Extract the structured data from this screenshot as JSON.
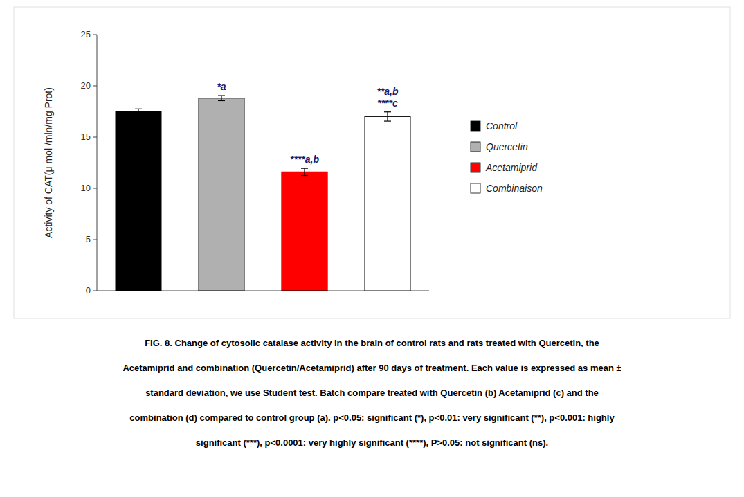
{
  "chart_data": {
    "type": "bar",
    "categories": [
      "Control",
      "Quercetin",
      "Acetamiprid",
      "Combinaison"
    ],
    "values": [
      17.5,
      18.8,
      11.6,
      17.0
    ],
    "errors": [
      0.25,
      0.25,
      0.35,
      0.45
    ],
    "colors": [
      "black",
      "#b0b0b0",
      "red",
      "white"
    ],
    "ylabel": "Activity of CAT(μ mol /mln/mg Prot)",
    "ylim": [
      0,
      25
    ],
    "yticks": [
      0,
      5,
      10,
      15,
      20,
      25
    ],
    "grid": false,
    "legend": "right",
    "tick_labels": "y",
    "annotations": [
      {
        "category": "Quercetin",
        "lines": [
          "*a"
        ],
        "color": "#1a1a6e"
      },
      {
        "category": "Acetamiprid",
        "lines": [
          "****a,b"
        ],
        "color": "#1a1a6e"
      },
      {
        "category": "Combinaison",
        "lines": [
          "**a,b",
          "****c"
        ],
        "color": "#1a1a6e"
      }
    ],
    "caption": [
      "FIG. 8. Change of cytosolic catalase activity in the brain of control rats and rats treated with Quercetin, the",
      "Acetamiprid and combination (Quercetin/Acetamiprid) after 90 days of treatment. Each value is expressed as mean ±",
      "standard deviation, we use Student test. Batch compare treated with Quercetin (b) Acetamiprid (c) and the",
      "combination (d) compared to control group (a). p<0.05: significant (*), p<0.01: very significant (**), p<0.001: highly",
      "significant (***), p<0.0001: very highly significant (****), P>0.05: not significant (ns)."
    ]
  }
}
